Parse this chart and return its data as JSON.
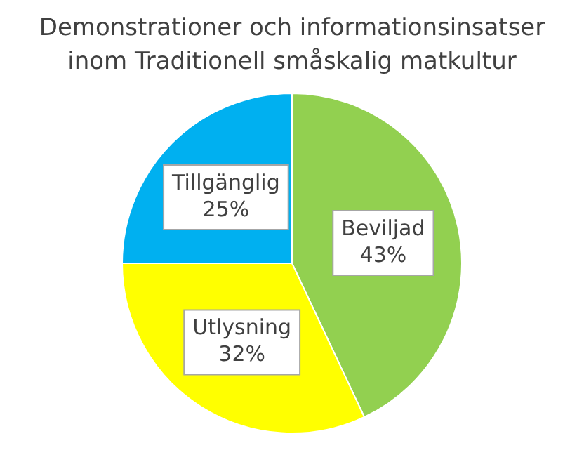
{
  "chart_data": {
    "type": "pie",
    "title": "Demonstrationer och informationsinsatser inom Traditionell småskalig matkultur",
    "categories": [
      "Beviljad",
      "Utlysning",
      "Tillgänglig"
    ],
    "values": [
      43,
      32,
      25
    ],
    "colors": [
      "#92d050",
      "#ffff00",
      "#00b0f0"
    ],
    "value_labels": [
      "43%",
      "32%",
      "25%"
    ],
    "legend": false
  }
}
